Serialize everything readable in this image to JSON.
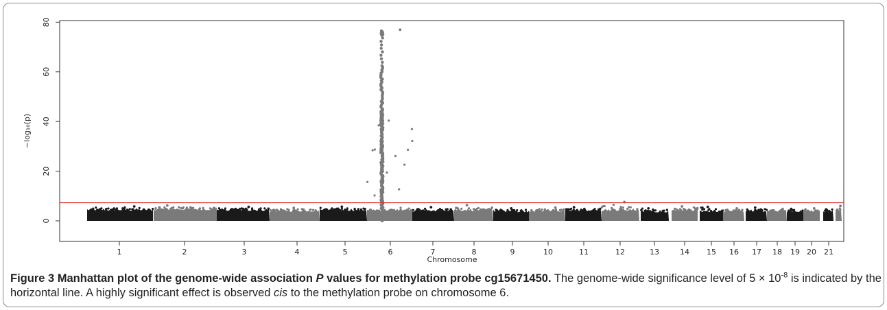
{
  "chart_data": {
    "type": "scatter",
    "subtype": "manhattan",
    "title": "",
    "xlabel": "Chromosome",
    "ylabel": "−log₁₀(p)",
    "ylim": [
      0,
      80
    ],
    "yticks": [
      0,
      20,
      40,
      60,
      80
    ],
    "grid": false,
    "legend": "none",
    "colors": [
      "#1a1a1a",
      "#7a7a7a"
    ],
    "threshold": {
      "value": 7.3,
      "color": "#e03030"
    },
    "chromosomes": [
      {
        "label": "1",
        "typical_max": 4.5,
        "max": 5.8
      },
      {
        "label": "2",
        "typical_max": 4.8,
        "max": 6.2
      },
      {
        "label": "3",
        "typical_max": 4.5,
        "max": 5.6
      },
      {
        "label": "4",
        "typical_max": 4.2,
        "max": 5.2
      },
      {
        "label": "5",
        "typical_max": 4.5,
        "max": 5.7
      },
      {
        "label": "6",
        "typical_max": 4.5,
        "max": 77.0,
        "peak": {
          "position": 0.33,
          "max": 77.0
        }
      },
      {
        "label": "7",
        "typical_max": 4.3,
        "max": 5.5
      },
      {
        "label": "8",
        "typical_max": 4.5,
        "max": 6.3
      },
      {
        "label": "9",
        "typical_max": 4.0,
        "max": 5.0
      },
      {
        "label": "10",
        "typical_max": 4.2,
        "max": 5.3
      },
      {
        "label": "11",
        "typical_max": 4.4,
        "max": 5.5
      },
      {
        "label": "12",
        "typical_max": 4.5,
        "max": 7.6
      },
      {
        "label": "13",
        "typical_max": 4.0,
        "max": 5.0
      },
      {
        "label": "14",
        "typical_max": 4.5,
        "max": 5.8
      },
      {
        "label": "15",
        "typical_max": 4.0,
        "max": 5.6
      },
      {
        "label": "16",
        "typical_max": 4.0,
        "max": 5.0
      },
      {
        "label": "17",
        "typical_max": 4.2,
        "max": 5.3
      },
      {
        "label": "18",
        "typical_max": 4.0,
        "max": 4.8
      },
      {
        "label": "19",
        "typical_max": 4.0,
        "max": 4.8
      },
      {
        "label": "20",
        "typical_max": 4.0,
        "max": 5.0
      },
      {
        "label": "21",
        "typical_max": 4.0,
        "max": 4.6
      },
      {
        "label": "",
        "typical_max": 4.5,
        "max": 6.0
      }
    ]
  },
  "caption": {
    "label": "Figure 3 Manhattan plot of the genome-wide association ",
    "label_p": "P",
    "label_rest": " values for methylation probe cg15671450.",
    "text1": " The genome-wide significance level of 5 × 10",
    "exponent": "-8",
    "text2": " is indicated by the horizontal line. A highly significant effect is observed ",
    "cis": "cis",
    "text3": " to the methylation probe on chromosome 6."
  }
}
